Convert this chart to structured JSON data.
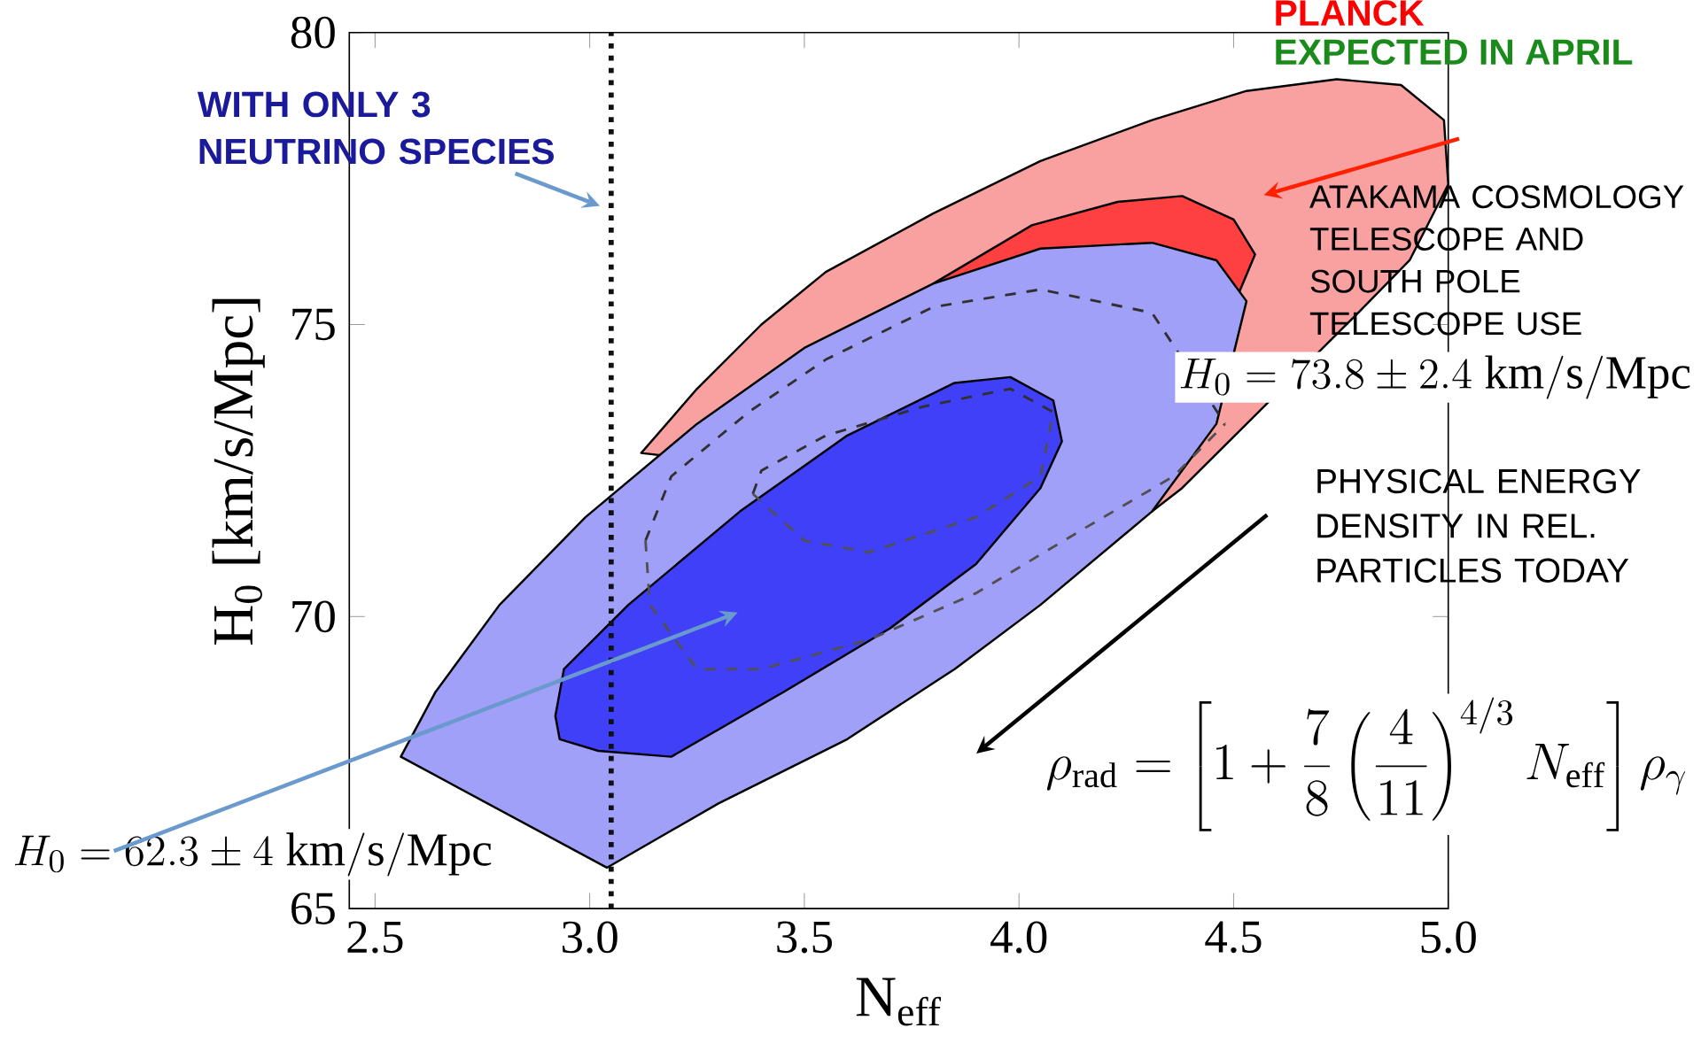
{
  "chart_data": {
    "type": "area",
    "xlabel": "N$_{eff}$",
    "ylabel": "H$_{0}$ [km/s/Mpc]",
    "xlim": [
      2.44,
      5.0
    ],
    "ylim": [
      65,
      80
    ],
    "xticks": [
      2.5,
      {
        "value": 3,
        "label": "3.0"
      },
      3.5,
      {
        "value": 4,
        "label": "4.0"
      },
      4.5,
      {
        "value": 5,
        "label": "5.0"
      }
    ],
    "yticks": [
      65,
      70,
      75,
      80
    ],
    "series": [
      {
        "color": "#f9a0a0",
        "x": [
          3.12,
          3.25,
          3.4,
          3.55,
          3.8,
          4.05,
          4.31,
          4.53,
          4.74,
          4.89,
          4.99,
          5.0,
          4.91,
          4.79,
          4.38,
          4.31
        ],
        "values": [
          72.8,
          73.9,
          75.0,
          75.9,
          76.9,
          77.8,
          78.5,
          79.0,
          79.2,
          79.1,
          78.5,
          77.4,
          76.1,
          75.2,
          72.2,
          71.8
        ]
      },
      {
        "color": "#ff4040",
        "x": [
          3.8,
          4.03,
          4.23,
          4.38,
          4.5,
          4.55,
          4.51
        ],
        "values": [
          75.7,
          76.7,
          77.1,
          77.2,
          76.8,
          76.2,
          75.5
        ]
      },
      {
        "color": "#a0a0f8",
        "x": [
          2.56,
          2.64,
          2.79,
          2.99,
          3.25,
          3.5,
          3.8,
          4.05,
          4.31,
          4.46,
          4.53,
          4.46,
          4.31,
          4.05,
          3.85,
          3.6,
          3.3,
          3.04
        ],
        "values": [
          67.6,
          68.7,
          70.2,
          71.7,
          73.3,
          74.6,
          75.7,
          76.3,
          76.4,
          76.1,
          75.4,
          73.3,
          71.8,
          70.2,
          69.1,
          67.9,
          66.8,
          65.7
        ]
      },
      {
        "color": "#4040f8",
        "x": [
          2.92,
          2.94,
          3.09,
          3.35,
          3.6,
          3.85,
          3.98,
          4.08,
          4.1,
          4.05,
          3.9,
          3.7,
          3.45,
          3.19,
          3.02,
          2.93
        ],
        "values": [
          68.3,
          69.1,
          70.2,
          71.8,
          73.1,
          74.0,
          74.1,
          73.7,
          73.0,
          72.2,
          70.9,
          69.8,
          68.7,
          67.6,
          67.7,
          67.9
        ]
      },
      {
        "type": "line",
        "line_style": "dashed",
        "color": "#303030",
        "x": [
          3.13,
          3.19,
          3.37,
          3.55,
          3.8,
          4.05,
          4.31,
          4.43,
          4.48
        ],
        "values": [
          71.3,
          72.4,
          73.5,
          74.4,
          75.3,
          75.6,
          75.2,
          null,
          73.3
        ]
      },
      {
        "type": "line",
        "line_style": "dashed",
        "color": "#505050",
        "x": [
          3.13,
          3.14,
          3.25,
          3.4,
          3.65,
          3.9,
          4.15,
          4.36,
          4.48
        ],
        "values": [
          71.3,
          70.2,
          69.1,
          69.1,
          69.6,
          70.4,
          71.5,
          72.4,
          73.3
        ]
      },
      {
        "type": "line",
        "line_style": "dashed",
        "color": "#303030",
        "x": [
          3.38,
          3.4,
          3.55,
          3.78,
          3.98,
          4.08
        ],
        "values": [
          72.1,
          72.5,
          73.1,
          73.6,
          73.9,
          73.5
        ]
      },
      {
        "type": "line",
        "line_style": "dashed",
        "color": "#505050",
        "x": [
          3.38,
          3.5,
          3.65,
          3.9,
          4.05,
          4.08
        ],
        "values": [
          72.1,
          71.3,
          71.1,
          71.7,
          72.4,
          73.5
        ]
      }
    ],
    "ref_lines": [
      {
        "axis": "x",
        "value": 3.05,
        "color": "#101010",
        "line_style": "dotted"
      }
    ],
    "annotations": [
      "PLANCK",
      "EXPECTED IN APRIL",
      "WITH ONLY 3 NEUTRINO SPECIES",
      "ATAKAMA COSMOLOGY TELESCOPE AND SOUTH POLE TELESCOPE USE",
      "H_0 = 73.8 \\pm 2.4~\\mathrm{km/s/Mpc}",
      "PHYSICAL ENERGY DENSITY IN REL. PARTICLES TODAY",
      "\\rho_{\\mathrm{rad}} = \\left[1+\\frac{7}{8}\\left(\\frac{4}{11}\\right)^{4/3} N_{\\mathrm{eff}}\\right]\\rho_\\gamma",
      "H_0 = 62.3 \\pm 4~\\mathrm{km/s/Mpc}"
    ]
  }
}
